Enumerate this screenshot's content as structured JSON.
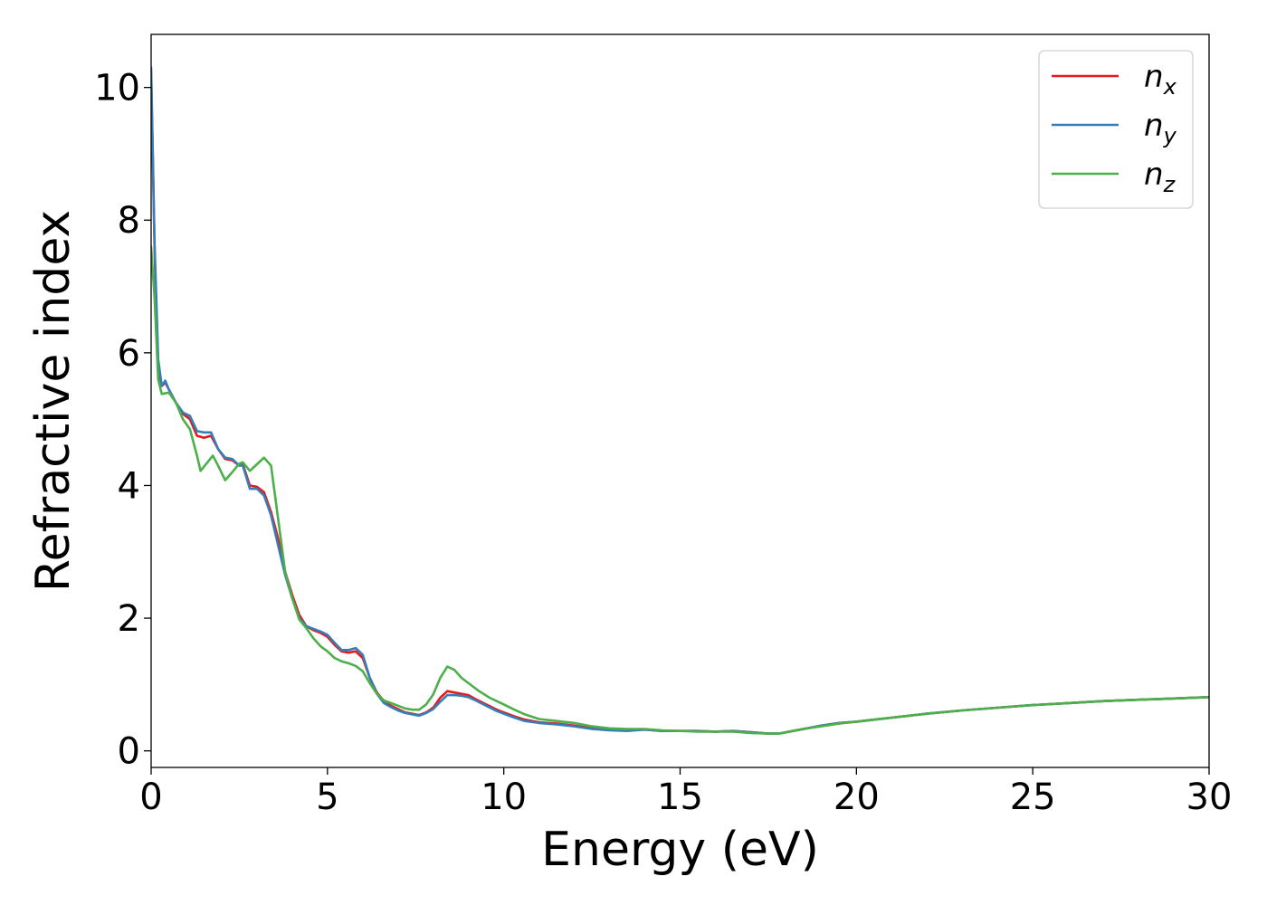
{
  "chart_data": {
    "type": "line",
    "title": "",
    "xlabel": "Energy (eV)",
    "ylabel": "Refractive index",
    "xlim": [
      0,
      30
    ],
    "ylim": [
      -0.25,
      10.8
    ],
    "xticks": [
      0,
      5,
      10,
      15,
      20,
      25,
      30
    ],
    "yticks": [
      0,
      2,
      4,
      6,
      8,
      10
    ],
    "grid": false,
    "legend_position": "top-right",
    "series": [
      {
        "name": "n",
        "subscript": "x",
        "color": "#e41a1c",
        "points": [
          [
            0,
            10.2
          ],
          [
            0.1,
            7.5
          ],
          [
            0.2,
            5.8
          ],
          [
            0.3,
            5.5
          ],
          [
            0.4,
            5.55
          ],
          [
            0.5,
            5.45
          ],
          [
            0.7,
            5.25
          ],
          [
            0.9,
            5.08
          ],
          [
            1.1,
            5.0
          ],
          [
            1.3,
            4.75
          ],
          [
            1.5,
            4.72
          ],
          [
            1.7,
            4.75
          ],
          [
            1.9,
            4.55
          ],
          [
            2.1,
            4.4
          ],
          [
            2.3,
            4.38
          ],
          [
            2.5,
            4.3
          ],
          [
            2.6,
            4.32
          ],
          [
            2.8,
            4.0
          ],
          [
            3.0,
            3.98
          ],
          [
            3.2,
            3.9
          ],
          [
            3.4,
            3.6
          ],
          [
            3.6,
            3.2
          ],
          [
            3.8,
            2.7
          ],
          [
            4.0,
            2.35
          ],
          [
            4.2,
            2.05
          ],
          [
            4.4,
            1.88
          ],
          [
            4.6,
            1.82
          ],
          [
            4.8,
            1.78
          ],
          [
            5.0,
            1.72
          ],
          [
            5.2,
            1.6
          ],
          [
            5.4,
            1.5
          ],
          [
            5.6,
            1.48
          ],
          [
            5.8,
            1.5
          ],
          [
            6.0,
            1.4
          ],
          [
            6.2,
            1.1
          ],
          [
            6.4,
            0.88
          ],
          [
            6.6,
            0.75
          ],
          [
            6.8,
            0.68
          ],
          [
            7.0,
            0.63
          ],
          [
            7.2,
            0.58
          ],
          [
            7.4,
            0.56
          ],
          [
            7.6,
            0.54
          ],
          [
            7.8,
            0.58
          ],
          [
            8.0,
            0.65
          ],
          [
            8.2,
            0.8
          ],
          [
            8.4,
            0.9
          ],
          [
            8.6,
            0.88
          ],
          [
            8.8,
            0.86
          ],
          [
            9.0,
            0.84
          ],
          [
            9.2,
            0.78
          ],
          [
            9.5,
            0.7
          ],
          [
            9.8,
            0.62
          ],
          [
            10.0,
            0.58
          ],
          [
            10.3,
            0.52
          ],
          [
            10.6,
            0.47
          ],
          [
            11.0,
            0.43
          ],
          [
            11.5,
            0.41
          ],
          [
            12.0,
            0.38
          ],
          [
            12.5,
            0.34
          ],
          [
            13.0,
            0.32
          ],
          [
            13.5,
            0.31
          ],
          [
            14.0,
            0.32
          ],
          [
            14.5,
            0.3
          ],
          [
            15.0,
            0.3
          ],
          [
            15.5,
            0.3
          ],
          [
            16.0,
            0.29
          ],
          [
            16.5,
            0.3
          ],
          [
            17.0,
            0.28
          ],
          [
            17.5,
            0.26
          ],
          [
            17.8,
            0.26
          ],
          [
            18.2,
            0.3
          ],
          [
            18.6,
            0.34
          ],
          [
            19.0,
            0.38
          ],
          [
            19.5,
            0.42
          ],
          [
            20.0,
            0.44
          ],
          [
            20.5,
            0.47
          ],
          [
            21.0,
            0.5
          ],
          [
            22.0,
            0.56
          ],
          [
            23.0,
            0.61
          ],
          [
            24.0,
            0.65
          ],
          [
            25.0,
            0.69
          ],
          [
            26.0,
            0.72
          ],
          [
            27.0,
            0.75
          ],
          [
            28.0,
            0.77
          ],
          [
            29.0,
            0.79
          ],
          [
            30.0,
            0.81
          ]
        ]
      },
      {
        "name": "n",
        "subscript": "y",
        "color": "#377eb8",
        "points": [
          [
            0,
            10.3
          ],
          [
            0.1,
            7.6
          ],
          [
            0.2,
            5.9
          ],
          [
            0.3,
            5.5
          ],
          [
            0.4,
            5.58
          ],
          [
            0.5,
            5.45
          ],
          [
            0.7,
            5.25
          ],
          [
            0.9,
            5.1
          ],
          [
            1.1,
            5.05
          ],
          [
            1.3,
            4.82
          ],
          [
            1.5,
            4.8
          ],
          [
            1.7,
            4.8
          ],
          [
            1.9,
            4.55
          ],
          [
            2.1,
            4.42
          ],
          [
            2.3,
            4.4
          ],
          [
            2.5,
            4.3
          ],
          [
            2.6,
            4.3
          ],
          [
            2.8,
            3.95
          ],
          [
            3.0,
            3.95
          ],
          [
            3.2,
            3.85
          ],
          [
            3.4,
            3.55
          ],
          [
            3.6,
            3.1
          ],
          [
            3.8,
            2.65
          ],
          [
            4.0,
            2.3
          ],
          [
            4.2,
            2.0
          ],
          [
            4.4,
            1.88
          ],
          [
            4.6,
            1.84
          ],
          [
            4.8,
            1.8
          ],
          [
            5.0,
            1.75
          ],
          [
            5.2,
            1.63
          ],
          [
            5.4,
            1.52
          ],
          [
            5.6,
            1.52
          ],
          [
            5.8,
            1.55
          ],
          [
            6.0,
            1.45
          ],
          [
            6.2,
            1.1
          ],
          [
            6.4,
            0.86
          ],
          [
            6.6,
            0.72
          ],
          [
            6.8,
            0.66
          ],
          [
            7.0,
            0.61
          ],
          [
            7.2,
            0.57
          ],
          [
            7.4,
            0.55
          ],
          [
            7.6,
            0.53
          ],
          [
            7.8,
            0.57
          ],
          [
            8.0,
            0.63
          ],
          [
            8.2,
            0.74
          ],
          [
            8.4,
            0.84
          ],
          [
            8.6,
            0.84
          ],
          [
            8.8,
            0.83
          ],
          [
            9.0,
            0.81
          ],
          [
            9.2,
            0.76
          ],
          [
            9.5,
            0.68
          ],
          [
            9.8,
            0.6
          ],
          [
            10.0,
            0.56
          ],
          [
            10.3,
            0.5
          ],
          [
            10.6,
            0.45
          ],
          [
            11.0,
            0.42
          ],
          [
            11.5,
            0.4
          ],
          [
            12.0,
            0.37
          ],
          [
            12.5,
            0.33
          ],
          [
            13.0,
            0.31
          ],
          [
            13.5,
            0.3
          ],
          [
            14.0,
            0.32
          ],
          [
            14.5,
            0.3
          ],
          [
            15.0,
            0.3
          ],
          [
            15.5,
            0.3
          ],
          [
            16.0,
            0.29
          ],
          [
            16.5,
            0.3
          ],
          [
            17.0,
            0.28
          ],
          [
            17.5,
            0.26
          ],
          [
            17.8,
            0.26
          ],
          [
            18.2,
            0.3
          ],
          [
            18.6,
            0.34
          ],
          [
            19.0,
            0.38
          ],
          [
            19.5,
            0.42
          ],
          [
            20.0,
            0.44
          ],
          [
            20.5,
            0.47
          ],
          [
            21.0,
            0.5
          ],
          [
            22.0,
            0.56
          ],
          [
            23.0,
            0.61
          ],
          [
            24.0,
            0.65
          ],
          [
            25.0,
            0.69
          ],
          [
            26.0,
            0.72
          ],
          [
            27.0,
            0.75
          ],
          [
            28.0,
            0.77
          ],
          [
            29.0,
            0.79
          ],
          [
            30.0,
            0.81
          ]
        ]
      },
      {
        "name": "n",
        "subscript": "z",
        "color": "#4daf4a",
        "points": [
          [
            0,
            7.6
          ],
          [
            0.1,
            6.8
          ],
          [
            0.2,
            5.6
          ],
          [
            0.3,
            5.38
          ],
          [
            0.5,
            5.4
          ],
          [
            0.7,
            5.25
          ],
          [
            0.9,
            5.0
          ],
          [
            1.1,
            4.85
          ],
          [
            1.3,
            4.45
          ],
          [
            1.4,
            4.22
          ],
          [
            1.6,
            4.35
          ],
          [
            1.75,
            4.45
          ],
          [
            1.9,
            4.3
          ],
          [
            2.1,
            4.08
          ],
          [
            2.3,
            4.2
          ],
          [
            2.5,
            4.33
          ],
          [
            2.6,
            4.35
          ],
          [
            2.8,
            4.22
          ],
          [
            3.0,
            4.32
          ],
          [
            3.2,
            4.42
          ],
          [
            3.4,
            4.3
          ],
          [
            3.6,
            3.5
          ],
          [
            3.8,
            2.7
          ],
          [
            4.0,
            2.3
          ],
          [
            4.2,
            1.98
          ],
          [
            4.4,
            1.85
          ],
          [
            4.6,
            1.7
          ],
          [
            4.8,
            1.58
          ],
          [
            5.0,
            1.5
          ],
          [
            5.2,
            1.4
          ],
          [
            5.4,
            1.35
          ],
          [
            5.6,
            1.32
          ],
          [
            5.8,
            1.28
          ],
          [
            6.0,
            1.2
          ],
          [
            6.2,
            1.02
          ],
          [
            6.4,
            0.86
          ],
          [
            6.6,
            0.76
          ],
          [
            6.8,
            0.72
          ],
          [
            7.0,
            0.68
          ],
          [
            7.2,
            0.64
          ],
          [
            7.4,
            0.62
          ],
          [
            7.6,
            0.62
          ],
          [
            7.8,
            0.7
          ],
          [
            8.0,
            0.85
          ],
          [
            8.2,
            1.1
          ],
          [
            8.4,
            1.27
          ],
          [
            8.6,
            1.22
          ],
          [
            8.8,
            1.1
          ],
          [
            9.0,
            1.02
          ],
          [
            9.3,
            0.9
          ],
          [
            9.6,
            0.8
          ],
          [
            10.0,
            0.7
          ],
          [
            10.3,
            0.62
          ],
          [
            10.6,
            0.55
          ],
          [
            11.0,
            0.48
          ],
          [
            11.5,
            0.45
          ],
          [
            12.0,
            0.42
          ],
          [
            12.5,
            0.37
          ],
          [
            13.0,
            0.34
          ],
          [
            13.5,
            0.33
          ],
          [
            14.0,
            0.33
          ],
          [
            14.5,
            0.31
          ],
          [
            15.0,
            0.3
          ],
          [
            15.5,
            0.29
          ],
          [
            16.0,
            0.29
          ],
          [
            16.5,
            0.29
          ],
          [
            17.0,
            0.27
          ],
          [
            17.5,
            0.26
          ],
          [
            17.8,
            0.26
          ],
          [
            18.2,
            0.3
          ],
          [
            18.6,
            0.34
          ],
          [
            19.0,
            0.37
          ],
          [
            19.5,
            0.41
          ],
          [
            20.0,
            0.44
          ],
          [
            20.5,
            0.47
          ],
          [
            21.0,
            0.5
          ],
          [
            22.0,
            0.56
          ],
          [
            23.0,
            0.61
          ],
          [
            24.0,
            0.65
          ],
          [
            25.0,
            0.69
          ],
          [
            26.0,
            0.72
          ],
          [
            27.0,
            0.75
          ],
          [
            28.0,
            0.77
          ],
          [
            29.0,
            0.79
          ],
          [
            30.0,
            0.81
          ]
        ]
      }
    ]
  }
}
